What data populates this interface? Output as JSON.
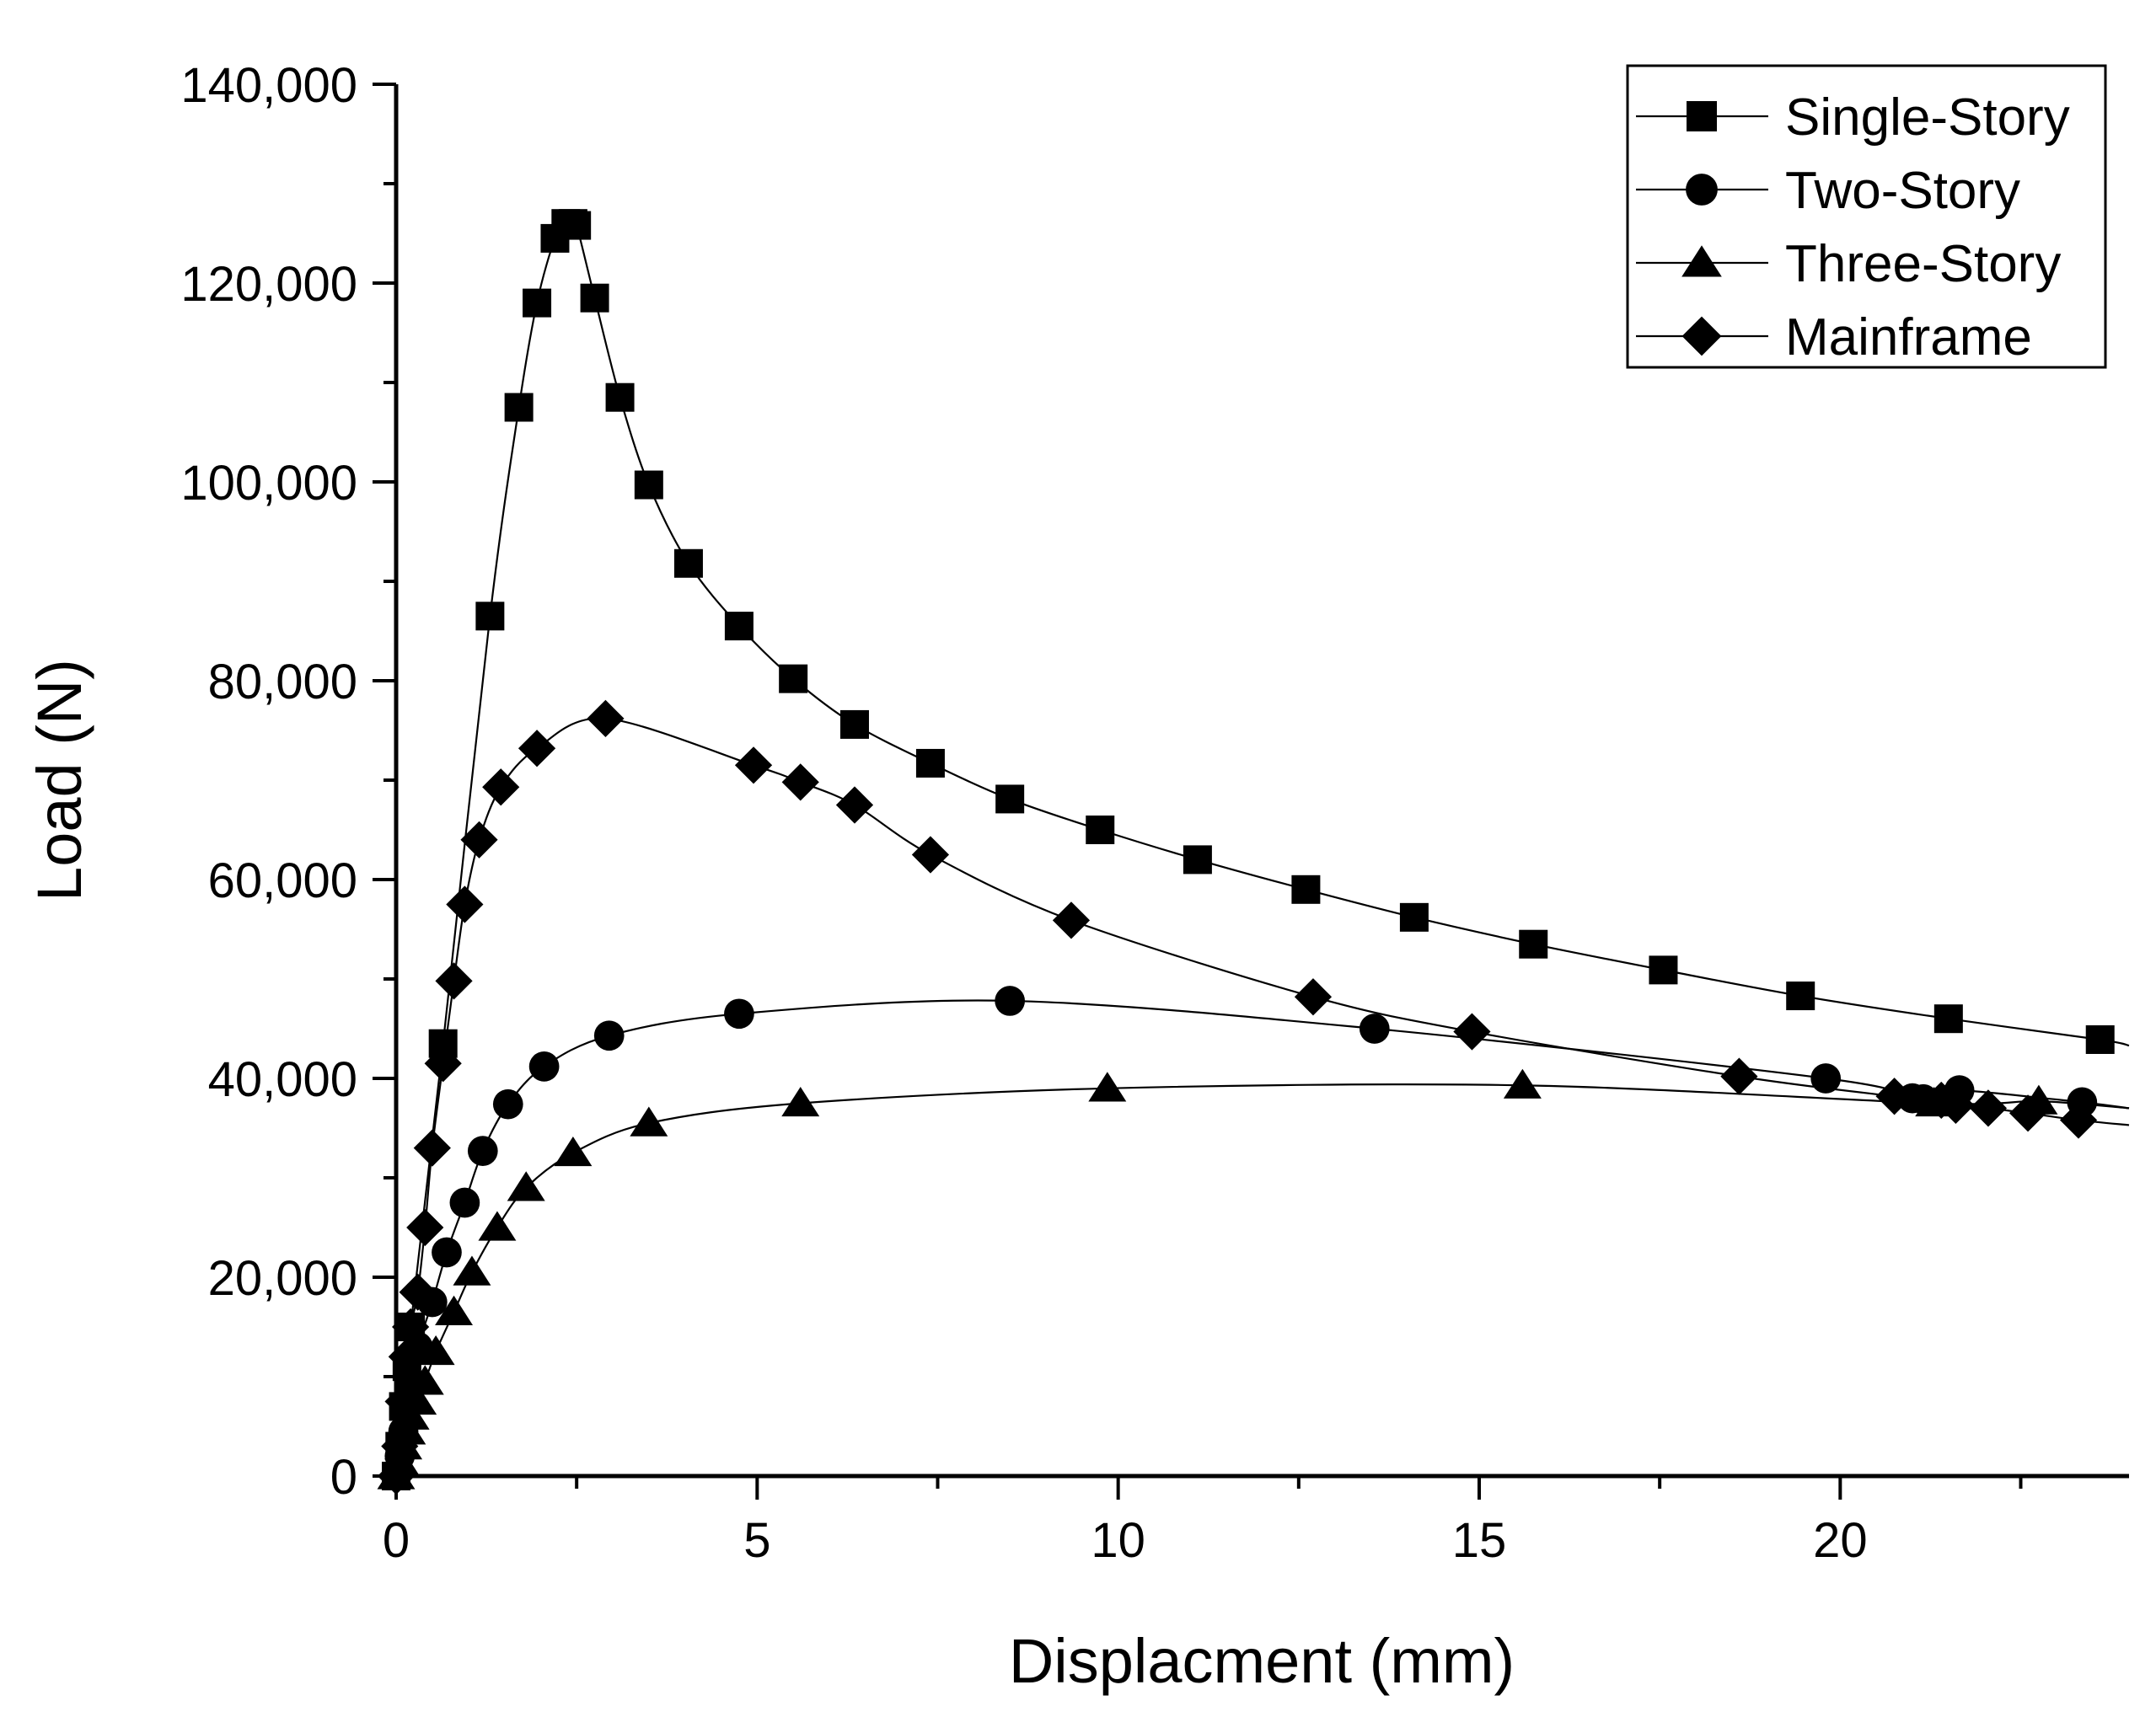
{
  "chart_data": {
    "type": "line",
    "title": "",
    "xlabel": "Displacment (mm)",
    "ylabel": "Load (N)",
    "xlim": [
      0,
      24
    ],
    "ylim": [
      0,
      140000
    ],
    "x_ticks": [
      0,
      5,
      10,
      15,
      20
    ],
    "x_tick_labels": [
      "0",
      "5",
      "10",
      "15",
      "20"
    ],
    "y_ticks": [
      0,
      20000,
      40000,
      60000,
      80000,
      100000,
      120000,
      140000
    ],
    "y_tick_labels": [
      "0",
      "20,000",
      "40,000",
      "60,000",
      "80,000",
      "100,000",
      "120,000",
      "140,000"
    ],
    "grid": false,
    "legend_position": "top-right",
    "series": [
      {
        "name": "Single-Story",
        "marker": "square",
        "points": [
          [
            0.0,
            0
          ],
          [
            0.05,
            3000
          ],
          [
            0.1,
            7000
          ],
          [
            0.15,
            11000
          ],
          [
            0.2,
            15000
          ],
          [
            0.65,
            43500
          ],
          [
            1.3,
            86500
          ],
          [
            1.7,
            107500
          ],
          [
            1.95,
            118000
          ],
          [
            2.2,
            124500
          ],
          [
            2.35,
            126000
          ],
          [
            2.45,
            126000
          ],
          [
            2.5,
            125800
          ],
          [
            2.75,
            118500
          ],
          [
            3.1,
            108500
          ],
          [
            3.5,
            99700
          ],
          [
            4.05,
            91800
          ],
          [
            4.75,
            85500
          ],
          [
            5.5,
            80200
          ],
          [
            6.35,
            75600
          ],
          [
            7.4,
            71700
          ],
          [
            8.5,
            68100
          ],
          [
            9.75,
            65000
          ],
          [
            11.1,
            62000
          ],
          [
            12.6,
            59000
          ],
          [
            14.1,
            56200
          ],
          [
            15.75,
            53500
          ],
          [
            17.55,
            50900
          ],
          [
            19.45,
            48300
          ],
          [
            21.5,
            46000
          ],
          [
            23.6,
            43900
          ],
          [
            24.0,
            43300
          ]
        ]
      },
      {
        "name": "Two-Story",
        "marker": "circle",
        "points": [
          [
            0.0,
            0
          ],
          [
            0.05,
            2000
          ],
          [
            0.1,
            4500
          ],
          [
            0.15,
            7000
          ],
          [
            0.2,
            9500
          ],
          [
            0.3,
            13000
          ],
          [
            0.5,
            17500
          ],
          [
            0.7,
            22500
          ],
          [
            0.95,
            27500
          ],
          [
            1.2,
            32700
          ],
          [
            1.55,
            37400
          ],
          [
            2.05,
            41200
          ],
          [
            2.95,
            44300
          ],
          [
            4.75,
            46500
          ],
          [
            8.5,
            47800
          ],
          [
            13.55,
            45000
          ],
          [
            19.8,
            40000
          ],
          [
            21.0,
            38000
          ],
          [
            21.15,
            37900
          ],
          [
            21.55,
            38000
          ],
          [
            21.65,
            38800
          ],
          [
            23.35,
            37600
          ],
          [
            24.0,
            37000
          ]
        ]
      },
      {
        "name": "Three-Story",
        "marker": "triangle",
        "points": [
          [
            0.0,
            0
          ],
          [
            0.05,
            1500
          ],
          [
            0.1,
            3000
          ],
          [
            0.15,
            4500
          ],
          [
            0.2,
            6000
          ],
          [
            0.3,
            7500
          ],
          [
            0.4,
            9500
          ],
          [
            0.55,
            12500
          ],
          [
            0.8,
            16500
          ],
          [
            1.05,
            20500
          ],
          [
            1.4,
            25000
          ],
          [
            1.8,
            29000
          ],
          [
            2.45,
            32500
          ],
          [
            3.5,
            35500
          ],
          [
            5.6,
            37500
          ],
          [
            9.85,
            39000
          ],
          [
            15.6,
            39300
          ],
          [
            21.3,
            37500
          ],
          [
            22.75,
            37700
          ],
          [
            24.0,
            37000
          ]
        ]
      },
      {
        "name": "Mainframe",
        "marker": "diamond",
        "points": [
          [
            0.0,
            0
          ],
          [
            0.05,
            3000
          ],
          [
            0.1,
            7500
          ],
          [
            0.15,
            12000
          ],
          [
            0.2,
            15000
          ],
          [
            0.3,
            18500
          ],
          [
            0.4,
            25000
          ],
          [
            0.5,
            33000
          ],
          [
            0.65,
            41500
          ],
          [
            0.8,
            49800
          ],
          [
            0.95,
            57500
          ],
          [
            1.15,
            64000
          ],
          [
            1.45,
            69300
          ],
          [
            1.95,
            73200
          ],
          [
            2.9,
            76200
          ],
          [
            4.95,
            71500
          ],
          [
            5.6,
            69800
          ],
          [
            6.35,
            67500
          ],
          [
            7.4,
            62500
          ],
          [
            9.35,
            55900
          ],
          [
            12.7,
            48200
          ],
          [
            14.9,
            44700
          ],
          [
            18.6,
            40200
          ],
          [
            20.75,
            38200
          ],
          [
            21.4,
            37800
          ],
          [
            21.6,
            37300
          ],
          [
            22.05,
            37000
          ],
          [
            22.6,
            36500
          ],
          [
            23.3,
            35800
          ],
          [
            24.0,
            35300
          ]
        ]
      }
    ]
  }
}
